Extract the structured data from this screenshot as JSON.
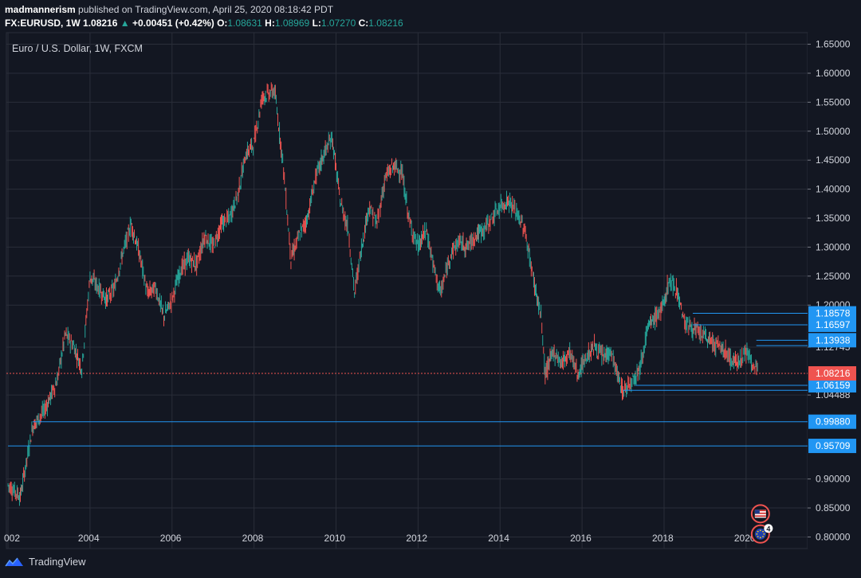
{
  "header": {
    "author": "madmannerism",
    "published_text": "published on TradingView.com, April 25, 2020 08:18:42 PDT",
    "symbol": "FX:EURUSD, 1W",
    "last": "1.08216",
    "change": "+0.00451 (+0.42%)",
    "open_label": "O:",
    "open": "1.08631",
    "high_label": "H:",
    "high": "1.08969",
    "low_label": "L:",
    "low": "1.07270",
    "close_label": "C:",
    "close": "1.08216"
  },
  "footer": {
    "brand": "TradingView"
  },
  "colors": {
    "background": "#131722",
    "grid": "#2a2e39",
    "up": "#26a69a",
    "down": "#ef5350",
    "level_line": "#2196f3",
    "price_badge": "#ef5350",
    "level_badge": "#2196f3"
  },
  "chart_data": {
    "type": "candlestick",
    "title": "Euro / U.S. Dollar, 1W, FXCM",
    "x_tick_labels": [
      "002",
      "2004",
      "2006",
      "2008",
      "2010",
      "2012",
      "2014",
      "2016",
      "2018",
      "2020"
    ],
    "y_tick_labels": [
      "1.65000",
      "1.60000",
      "1.55000",
      "1.50000",
      "1.45000",
      "1.40000",
      "1.35000",
      "1.30000",
      "1.25000",
      "1.20000",
      "1.12745",
      "1.04488",
      "0.90000",
      "0.85000",
      "0.80000"
    ],
    "ylim": [
      0.78,
      1.67
    ],
    "xlim": [
      2001.96,
      2021.5
    ],
    "current_price": "1.08216",
    "levels": [
      {
        "price": 1.18578,
        "label": "1.18578",
        "from": 2018.7
      },
      {
        "price": 1.16597,
        "label": "1.16597",
        "from": 2018.7
      },
      {
        "price": 1.13938,
        "label": "1.13938",
        "from": 2020.25
      },
      {
        "price": 1.06159,
        "label": "1.06159",
        "from": 2017.3
      },
      {
        "price": 0.9988,
        "label": "0.99880",
        "from": 2002.6
      },
      {
        "price": 0.95709,
        "label": "0.95709",
        "from": 2002.0
      }
    ],
    "extra_level_lines": [
      {
        "price": 1.13,
        "from": 2020.25
      },
      {
        "price": 1.053,
        "from": 2017.0
      }
    ],
    "series": [
      {
        "x": [
          2002.0,
          2002.3,
          2002.6,
          2002.9,
          2003.2,
          2003.4,
          2003.6,
          2003.8,
          2004.0,
          2004.2,
          2004.4,
          2004.6,
          2004.8,
          2005.0,
          2005.2,
          2005.4,
          2005.6,
          2005.8,
          2006.0,
          2006.2,
          2006.4,
          2006.6,
          2006.8,
          2007.0,
          2007.2,
          2007.4,
          2007.6,
          2007.8,
          2008.0,
          2008.2,
          2008.5,
          2008.7,
          2008.9,
          2009.1,
          2009.3,
          2009.5,
          2009.7,
          2009.9,
          2010.1,
          2010.3,
          2010.45,
          2010.6,
          2010.8,
          2011.0,
          2011.2,
          2011.4,
          2011.6,
          2011.8,
          2012.0,
          2012.2,
          2012.4,
          2012.55,
          2012.8,
          2013.0,
          2013.2,
          2013.4,
          2013.6,
          2013.8,
          2014.0,
          2014.2,
          2014.4,
          2014.6,
          2014.8,
          2015.0,
          2015.1,
          2015.3,
          2015.5,
          2015.7,
          2015.9,
          2016.1,
          2016.3,
          2016.5,
          2016.7,
          2016.9,
          2017.0,
          2017.2,
          2017.4,
          2017.6,
          2017.8,
          2018.0,
          2018.1,
          2018.3,
          2018.5,
          2018.7,
          2018.9,
          2019.1,
          2019.3,
          2019.5,
          2019.7,
          2019.9,
          2020.0,
          2020.15,
          2020.3
        ],
        "y": [
          0.89,
          0.87,
          0.99,
          1.02,
          1.07,
          1.15,
          1.13,
          1.09,
          1.25,
          1.23,
          1.21,
          1.23,
          1.29,
          1.34,
          1.29,
          1.22,
          1.23,
          1.18,
          1.21,
          1.26,
          1.28,
          1.27,
          1.32,
          1.3,
          1.34,
          1.35,
          1.39,
          1.46,
          1.48,
          1.56,
          1.57,
          1.45,
          1.28,
          1.32,
          1.35,
          1.42,
          1.46,
          1.49,
          1.38,
          1.33,
          1.22,
          1.29,
          1.37,
          1.34,
          1.42,
          1.44,
          1.43,
          1.34,
          1.3,
          1.33,
          1.26,
          1.22,
          1.29,
          1.31,
          1.3,
          1.32,
          1.33,
          1.35,
          1.37,
          1.38,
          1.36,
          1.33,
          1.25,
          1.18,
          1.08,
          1.12,
          1.1,
          1.12,
          1.08,
          1.11,
          1.13,
          1.11,
          1.12,
          1.07,
          1.05,
          1.07,
          1.09,
          1.16,
          1.18,
          1.2,
          1.24,
          1.23,
          1.17,
          1.16,
          1.15,
          1.14,
          1.13,
          1.12,
          1.1,
          1.11,
          1.12,
          1.1,
          1.08
        ]
      }
    ],
    "grid": true,
    "event_markers": [
      {
        "x": 2020.35,
        "flag": "us-flag",
        "price": 0.84
      },
      {
        "x": 2020.35,
        "flag": "eu-flag",
        "price": 0.805,
        "count": "4"
      }
    ]
  }
}
